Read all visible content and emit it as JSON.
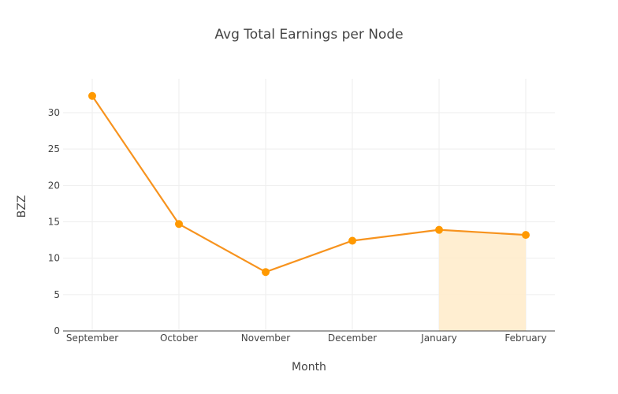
{
  "chart_data": {
    "type": "line",
    "title": "Avg Total Earnings per Node",
    "xlabel": "Month",
    "ylabel": "BZZ",
    "categories": [
      "September",
      "October",
      "November",
      "December",
      "January",
      "February"
    ],
    "series": [
      {
        "name": "Avg Total Earnings per Node",
        "values": [
          32.3,
          14.7,
          8.1,
          12.4,
          13.9,
          13.2
        ],
        "color": "#ff9900"
      }
    ],
    "highlight": {
      "from": "January",
      "to": "February",
      "fill": "#ffebc9"
    },
    "ylim": [
      0,
      34.8
    ],
    "yticks": [
      0,
      5,
      10,
      15,
      20,
      25,
      30
    ],
    "grid": true,
    "legend": "none"
  }
}
